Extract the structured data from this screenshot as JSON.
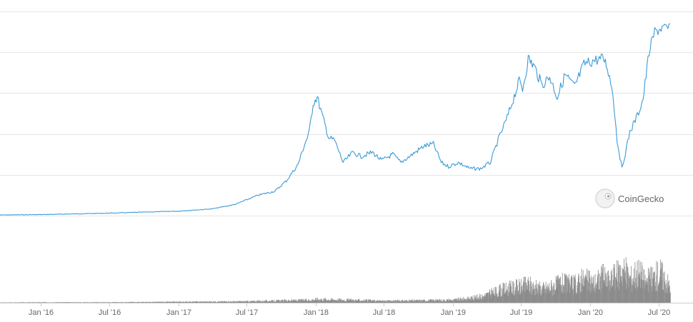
{
  "chart_data": {
    "type": "line",
    "title": "",
    "xlabel": "",
    "ylabel": "",
    "x_ticks": [
      "Jan '16",
      "Jul '16",
      "Jan '17",
      "Jul '17",
      "Jan '18",
      "Jul '18",
      "Jan '19",
      "Jul '19",
      "Jan '20",
      "Jul '20"
    ],
    "xlim": [
      "2015-09-15",
      "2020-07-31"
    ],
    "ylim": [
      0,
      100
    ],
    "grid": true,
    "legend": "none",
    "colors": {
      "price_line": "#3c9ad6",
      "volume_bars": "#8c8c8c",
      "gridlines": "#e6e6e6"
    },
    "series": [
      {
        "type": "line",
        "x": [
          "2015-09-15",
          "2016-01-01",
          "2016-07-01",
          "2017-01-01",
          "2017-04-01",
          "2017-06-01",
          "2017-08-01",
          "2017-09-15",
          "2017-10-15",
          "2017-11-15",
          "2017-12-01",
          "2017-12-15",
          "2017-12-25",
          "2018-01-05",
          "2018-01-20",
          "2018-02-05",
          "2018-02-20",
          "2018-03-15",
          "2018-04-10",
          "2018-05-01",
          "2018-06-01",
          "2018-06-25",
          "2018-07-25",
          "2018-08-15",
          "2018-09-15",
          "2018-10-15",
          "2018-11-10",
          "2018-12-01",
          "2018-12-20",
          "2019-01-15",
          "2019-02-15",
          "2019-03-15",
          "2019-04-10",
          "2019-05-01",
          "2019-05-25",
          "2019-06-10",
          "2019-06-26",
          "2019-07-05",
          "2019-07-20",
          "2019-08-05",
          "2019-08-25",
          "2019-09-15",
          "2019-10-05",
          "2019-10-26",
          "2019-11-20",
          "2019-12-15",
          "2020-01-10",
          "2020-02-05",
          "2020-02-15",
          "2020-03-01",
          "2020-03-12",
          "2020-03-25",
          "2020-04-15",
          "2020-05-05",
          "2020-05-20",
          "2020-06-05",
          "2020-06-20",
          "2020-07-10",
          "2020-07-25",
          "2020-07-31"
        ],
        "y": [
          0.3,
          0.5,
          1.2,
          2.2,
          3.3,
          5.5,
          10,
          12,
          17,
          25,
          34,
          41,
          55,
          58,
          48,
          38,
          37,
          26,
          31,
          29,
          31,
          27,
          30,
          26,
          30,
          34,
          35,
          26,
          24,
          26,
          23,
          23,
          26,
          37,
          48,
          57,
          66,
          62,
          77,
          73,
          64,
          68,
          58,
          69,
          63,
          74,
          76,
          77,
          73,
          60,
          37,
          23,
          41,
          49,
          57,
          80,
          90,
          92,
          91,
          94
        ]
      },
      {
        "type": "bar",
        "x": [
          "2015-09-15",
          "2016-01-01",
          "2016-07-01",
          "2017-01-01",
          "2017-07-01",
          "2017-12-15",
          "2018-01-05",
          "2018-07-01",
          "2019-01-01",
          "2019-03-15",
          "2019-04-15",
          "2019-05-15",
          "2019-06-15",
          "2019-07-01",
          "2019-07-20",
          "2019-08-15",
          "2019-09-15",
          "2019-10-15",
          "2019-11-15",
          "2019-12-15",
          "2020-01-10",
          "2020-02-01",
          "2020-02-20",
          "2020-03-10",
          "2020-03-25",
          "2020-04-15",
          "2020-05-05",
          "2020-05-25",
          "2020-06-15",
          "2020-07-05",
          "2020-07-31"
        ],
        "values": [
          0.5,
          1,
          1,
          2,
          3,
          6,
          8,
          4,
          6,
          13,
          22,
          30,
          34,
          36,
          42,
          30,
          35,
          44,
          40,
          52,
          45,
          58,
          48,
          62,
          78,
          54,
          72,
          48,
          58,
          68,
          36
        ]
      }
    ]
  },
  "watermark": {
    "label": "CoinGecko",
    "icon": "coingecko-logo-icon"
  }
}
